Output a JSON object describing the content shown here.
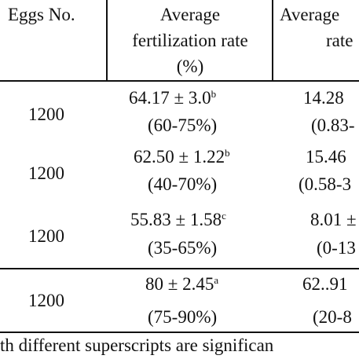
{
  "table": {
    "headers": {
      "eggs_no": "Eggs No.",
      "fert_line1": "Average",
      "fert_line2": "fertilization rate",
      "fert_line3": "(%)",
      "next_line1": "Average",
      "next_line2": "rate"
    },
    "rows": [
      {
        "eggs": "1200",
        "fert_value": "64.17 ± 3.0",
        "fert_sup": "b",
        "fert_range": "(60-75%)",
        "next_value": "14.28",
        "next_range": "(0.83-"
      },
      {
        "eggs": "1200",
        "fert_value": "62.50 ± 1.22",
        "fert_sup": "b",
        "fert_range": "(40-70%)",
        "next_value": "15.46",
        "next_range": "(0.58-3"
      },
      {
        "eggs": "1200",
        "fert_value": "55.83 ± 1.58",
        "fert_sup": "c",
        "fert_range": "(35-65%)",
        "next_value": "8.01 ±",
        "next_range": "(0-13"
      },
      {
        "eggs": "1200",
        "fert_value": "80 ± 2.45",
        "fert_sup": "a",
        "fert_range": "(75-90%)",
        "next_value": "62..91",
        "next_range": "(20-8"
      }
    ],
    "footnote": "th different superscripts are significan"
  }
}
